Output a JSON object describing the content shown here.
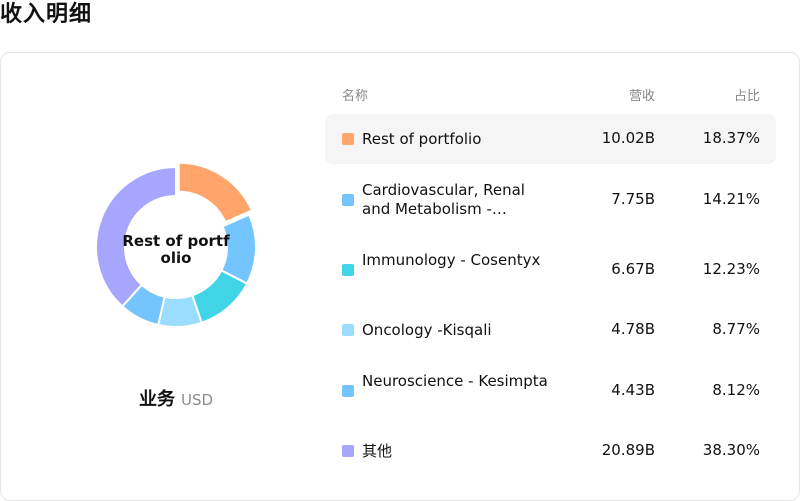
{
  "page": {
    "title": "收入明细"
  },
  "donut": {
    "center_label": "Rest of portfolio"
  },
  "caption": {
    "label": "业务",
    "unit": "USD"
  },
  "table": {
    "headers": {
      "name": "名称",
      "revenue": "营收",
      "share": "占比"
    },
    "rows": [
      {
        "name": "Rest of portfolio",
        "revenue": "10.02B",
        "share": "18.37%",
        "color": "#FFA56B",
        "highlighted": true
      },
      {
        "name": "Cardiovascular, Renal and Metabolism -…",
        "revenue": "7.75B",
        "share": "14.21%",
        "color": "#74C5FF",
        "highlighted": false
      },
      {
        "name": "Immunology - Cosentyx",
        "revenue": "6.67B",
        "share": "12.23%",
        "color": "#41D4E6",
        "highlighted": false
      },
      {
        "name": "Oncology -Kisqali",
        "revenue": "4.78B",
        "share": "8.77%",
        "color": "#9BDDFF",
        "highlighted": false
      },
      {
        "name": "Neuroscience - Kesimpta",
        "revenue": "4.43B",
        "share": "8.12%",
        "color": "#74C5FF",
        "highlighted": false
      },
      {
        "name": "其他",
        "revenue": "20.89B",
        "share": "38.30%",
        "color": "#A6A6FF",
        "highlighted": false
      }
    ]
  },
  "chart_data": {
    "type": "pie",
    "categories": [
      "Rest of portfolio",
      "Cardiovascular, Renal and Metabolism -…",
      "Immunology - Cosentyx",
      "Oncology -Kisqali",
      "Neuroscience - Kesimpta",
      "其他"
    ],
    "values": [
      10.02,
      7.75,
      6.67,
      4.78,
      4.43,
      20.89
    ],
    "shares": [
      18.37,
      14.21,
      12.23,
      8.77,
      8.12,
      38.3
    ],
    "colors": [
      "#FFA56B",
      "#74C5FF",
      "#41D4E6",
      "#9BDDFF",
      "#74C5FF",
      "#A6A6FF"
    ],
    "highlight_index": 0,
    "title": "",
    "unit": "USD"
  }
}
